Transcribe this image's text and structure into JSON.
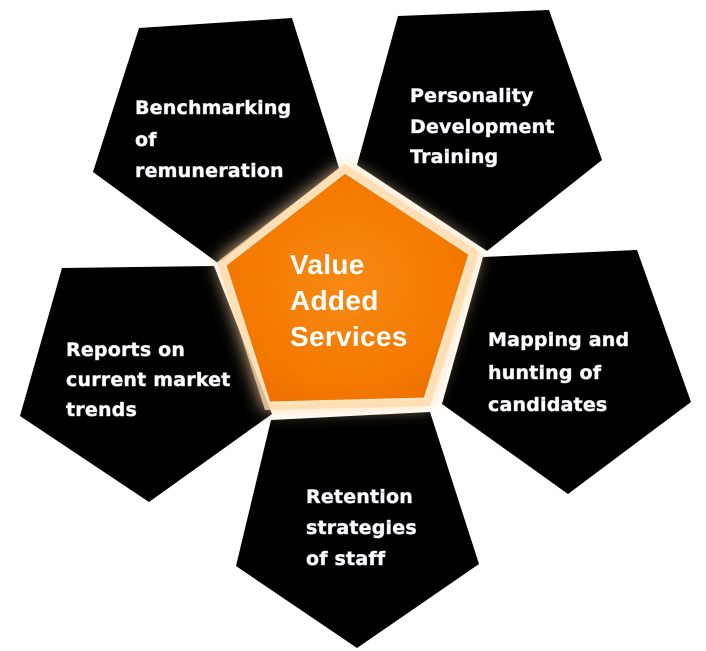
{
  "hub": {
    "lines": [
      "Value",
      "Added",
      "Services"
    ]
  },
  "petals": {
    "benchmarking": {
      "lines": [
        "Benchmarking",
        "of",
        "remuneration"
      ]
    },
    "personality": {
      "lines": [
        "Personality",
        "Development",
        "Training"
      ]
    },
    "mapping": {
      "lines": [
        "Mapping and",
        "hunting of",
        "candidates"
      ]
    },
    "retention": {
      "lines": [
        "Retention",
        "strategies",
        "of staff"
      ]
    },
    "reports": {
      "lines": [
        "Reports on",
        "current market",
        "trends"
      ]
    }
  },
  "colors": {
    "hub_fill": "#f57c00",
    "hub_glow": "#ffe0b3",
    "petal_fill": "#000000",
    "text": "#ffffff"
  }
}
